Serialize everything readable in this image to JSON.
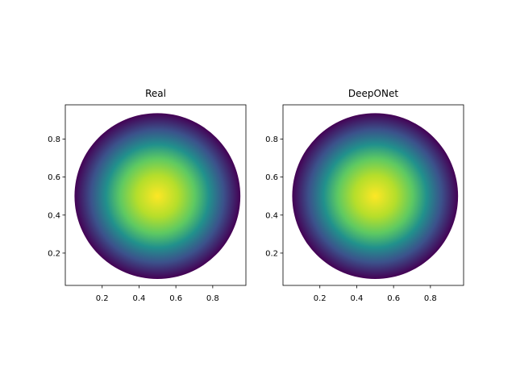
{
  "chart_data": [
    {
      "type": "heatmap",
      "title": "Real",
      "xlabel": "",
      "ylabel": "",
      "xlim": [
        0.0,
        0.98
      ],
      "ylim": [
        0.03,
        0.98
      ],
      "xticks": [
        0.2,
        0.4,
        0.6,
        0.8
      ],
      "yticks": [
        0.2,
        0.4,
        0.6,
        0.8
      ],
      "xtick_labels": [
        "0.2",
        "0.4",
        "0.6",
        "0.8"
      ],
      "ytick_labels": [
        "0.2",
        "0.4",
        "0.6",
        "0.8"
      ],
      "grid": false,
      "domain": {
        "shape": "disk",
        "center": [
          0.5,
          0.5
        ],
        "radius": 0.45
      },
      "field": "peak at center, decreasing radially",
      "colormap": "viridis",
      "colormap_stops": [
        "#440154",
        "#3b528b",
        "#21918c",
        "#5ec962",
        "#fde725"
      ]
    },
    {
      "type": "heatmap",
      "title": "DeepONet",
      "xlabel": "",
      "ylabel": "",
      "xlim": [
        0.0,
        0.98
      ],
      "ylim": [
        0.03,
        0.98
      ],
      "xticks": [
        0.2,
        0.4,
        0.6,
        0.8
      ],
      "yticks": [
        0.2,
        0.4,
        0.6,
        0.8
      ],
      "xtick_labels": [
        "0.2",
        "0.4",
        "0.6",
        "0.8"
      ],
      "ytick_labels": [
        "0.2",
        "0.4",
        "0.6",
        "0.8"
      ],
      "grid": false,
      "domain": {
        "shape": "disk",
        "center": [
          0.5,
          0.5
        ],
        "radius": 0.45
      },
      "field": "peak at center, decreasing radially",
      "colormap": "viridis",
      "colormap_stops": [
        "#440154",
        "#3b528b",
        "#21918c",
        "#5ec962",
        "#fde725"
      ]
    }
  ]
}
